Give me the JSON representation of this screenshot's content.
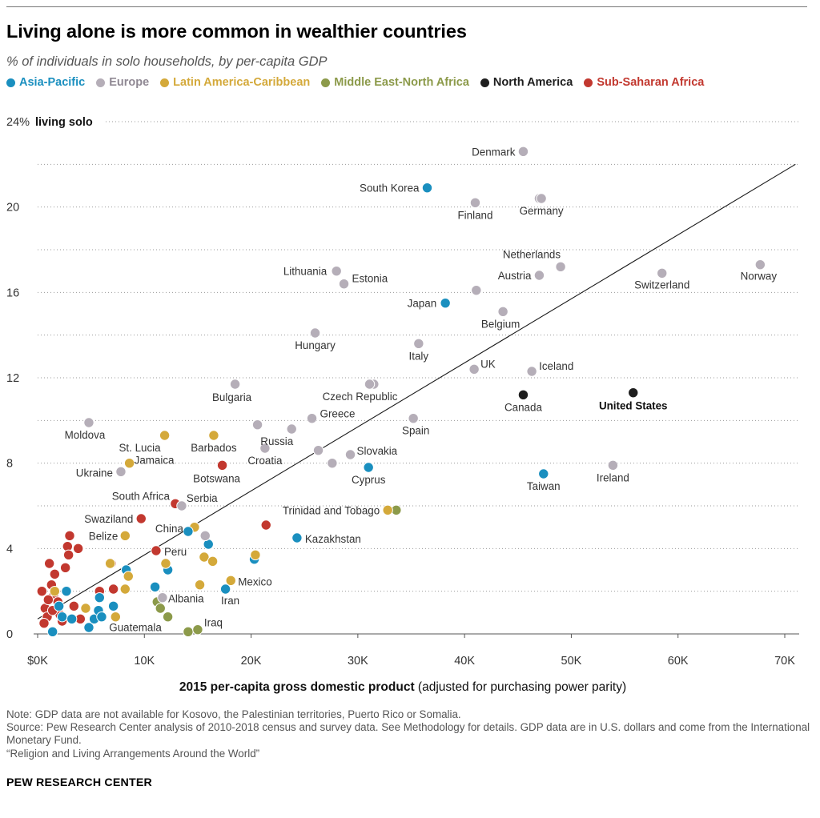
{
  "header": {
    "title": "Living alone is more common in wealthier countries",
    "subtitle": "% of individuals in solo households, by per-capita GDP"
  },
  "legend": [
    {
      "label": "Asia-Pacific",
      "color": "#1a8fbf"
    },
    {
      "label": "Europe",
      "color": "#b5aeb8"
    },
    {
      "label": "Latin America-Caribbean",
      "color": "#d4a93a"
    },
    {
      "label": "Middle East-North Africa",
      "color": "#8c9a4a"
    },
    {
      "label": "North America",
      "color": "#1e1e1e"
    },
    {
      "label": "Sub-Saharan Africa",
      "color": "#c2382f"
    }
  ],
  "chart_data": {
    "type": "scatter",
    "title": "Living alone is more common in wealthier countries",
    "xlabel_bold": "2015 per-capita gross domestic product",
    "xlabel_rest": " (adjusted for purchasing power parity)",
    "ylabel": "living solo",
    "xlim": [
      0,
      72000
    ],
    "ylim": [
      0,
      24
    ],
    "x_ticks": [
      {
        "value": 0,
        "label": "$0K"
      },
      {
        "value": 10000,
        "label": "10K"
      },
      {
        "value": 20000,
        "label": "20K"
      },
      {
        "value": 30000,
        "label": "30K"
      },
      {
        "value": 40000,
        "label": "40K"
      },
      {
        "value": 50000,
        "label": "50K"
      },
      {
        "value": 60000,
        "label": "60K"
      },
      {
        "value": 70000,
        "label": "70K"
      }
    ],
    "y_ticks": [
      {
        "value": 0,
        "label": "0"
      },
      {
        "value": 4,
        "label": "4"
      },
      {
        "value": 8,
        "label": "8"
      },
      {
        "value": 12,
        "label": "12"
      },
      {
        "value": 16,
        "label": "16"
      },
      {
        "value": 20,
        "label": "20"
      },
      {
        "value": 24,
        "label": "24%"
      }
    ],
    "gridlines_y": [
      2,
      6,
      10,
      14,
      18,
      22
    ],
    "trend_line": [
      [
        0,
        0.7
      ],
      [
        71000,
        22.0
      ]
    ],
    "colors": {
      "Asia-Pacific": "#1a8fbf",
      "Europe": "#b5aeb8",
      "Latin America-Caribbean": "#d4a93a",
      "Middle East-North Africa": "#8c9a4a",
      "North America": "#1e1e1e",
      "Sub-Saharan Africa": "#c2382f"
    },
    "labeled_points": [
      {
        "name": "Denmark",
        "region": "Europe",
        "x": 45500,
        "y": 22.6,
        "anchor": "end",
        "dx": -10,
        "dy": 5
      },
      {
        "name": "South Korea",
        "region": "Asia-Pacific",
        "x": 36500,
        "y": 20.9,
        "anchor": "end",
        "dx": -10,
        "dy": 5
      },
      {
        "name": "Finland",
        "region": "Europe",
        "x": 41000,
        "y": 20.2,
        "anchor": "middle",
        "dx": 0,
        "dy": 20
      },
      {
        "name": "Germany",
        "region": "Europe",
        "x": 47200,
        "y": 20.4,
        "anchor": "middle",
        "dx": 0,
        "dy": 20
      },
      {
        "name": "Lithuania",
        "region": "Europe",
        "x": 28000,
        "y": 17.0,
        "anchor": "end",
        "dx": -12,
        "dy": 5
      },
      {
        "name": "Estonia",
        "region": "Europe",
        "x": 28700,
        "y": 16.4,
        "anchor": "start",
        "dx": 10,
        "dy": -2
      },
      {
        "name": "Netherlands",
        "region": "Europe",
        "x": 49000,
        "y": 17.2,
        "anchor": "end",
        "dx": 0,
        "dy": -11
      },
      {
        "name": "Austria",
        "region": "Europe",
        "x": 47000,
        "y": 16.8,
        "anchor": "end",
        "dx": -10,
        "dy": 5
      },
      {
        "name": "Switzerland",
        "region": "Europe",
        "x": 58500,
        "y": 16.9,
        "anchor": "middle",
        "dx": 0,
        "dy": 19
      },
      {
        "name": "Norway",
        "region": "Europe",
        "x": 67700,
        "y": 17.3,
        "anchor": "middle",
        "dx": -2,
        "dy": 19
      },
      {
        "name": "Japan",
        "region": "Asia-Pacific",
        "x": 38200,
        "y": 15.5,
        "anchor": "end",
        "dx": -11,
        "dy": 5
      },
      {
        "name": "Belgium",
        "region": "Europe",
        "x": 43600,
        "y": 15.1,
        "anchor": "middle",
        "dx": -3,
        "dy": 20
      },
      {
        "name": "Hungary",
        "region": "Europe",
        "x": 26000,
        "y": 14.1,
        "anchor": "middle",
        "dx": 0,
        "dy": 20
      },
      {
        "name": "Italy",
        "region": "Europe",
        "x": 35700,
        "y": 13.6,
        "anchor": "middle",
        "dx": 0,
        "dy": 20
      },
      {
        "name": "UK",
        "region": "Europe",
        "x": 40900,
        "y": 12.4,
        "anchor": "start",
        "dx": 8,
        "dy": -2
      },
      {
        "name": "Iceland",
        "region": "Europe",
        "x": 46300,
        "y": 12.3,
        "anchor": "start",
        "dx": 9,
        "dy": -2
      },
      {
        "name": "Bulgaria",
        "region": "Europe",
        "x": 18500,
        "y": 11.7,
        "anchor": "middle",
        "dx": -4,
        "dy": 21
      },
      {
        "name": "Czech Republic",
        "region": "Europe",
        "x": 31100,
        "y": 11.7,
        "anchor": "middle",
        "dx": -12,
        "dy": 20
      },
      {
        "name": "Canada",
        "region": "North America",
        "x": 45500,
        "y": 11.2,
        "anchor": "middle",
        "dx": 0,
        "dy": 20
      },
      {
        "name": "United States",
        "region": "North America",
        "x": 55800,
        "y": 11.3,
        "anchor": "middle",
        "dx": 0,
        "dy": 21,
        "bold": true
      },
      {
        "name": "Greece",
        "region": "Europe",
        "x": 25700,
        "y": 10.1,
        "anchor": "start",
        "dx": 10,
        "dy": -1
      },
      {
        "name": "Spain",
        "region": "Europe",
        "x": 35200,
        "y": 10.1,
        "anchor": "middle",
        "dx": 3,
        "dy": 20
      },
      {
        "name": "Moldova",
        "region": "Europe",
        "x": 4800,
        "y": 9.9,
        "anchor": "middle",
        "dx": -5,
        "dy": 20
      },
      {
        "name": "Russia",
        "region": "Europe",
        "x": 23800,
        "y": 9.6,
        "anchor": "end",
        "dx": 2,
        "dy": 20
      },
      {
        "name": "St. Lucia",
        "region": "Latin America-Caribbean",
        "x": 11900,
        "y": 9.3,
        "anchor": "end",
        "dx": -5,
        "dy": 20
      },
      {
        "name": "Barbados",
        "region": "Latin America-Caribbean",
        "x": 16500,
        "y": 9.3,
        "anchor": "middle",
        "dx": 0,
        "dy": 20
      },
      {
        "name": "Slovakia",
        "region": "Europe",
        "x": 29300,
        "y": 8.4,
        "anchor": "start",
        "dx": 8,
        "dy": 0
      },
      {
        "name": "Croatia",
        "region": "Europe",
        "x": 21300,
        "y": 8.7,
        "anchor": "middle",
        "dx": 0,
        "dy": 20
      },
      {
        "name": "Jamaica",
        "region": "Latin America-Caribbean",
        "x": 8600,
        "y": 8.0,
        "anchor": "start",
        "dx": 6,
        "dy": 1
      },
      {
        "name": "Ukraine",
        "region": "Europe",
        "x": 7800,
        "y": 7.6,
        "anchor": "end",
        "dx": -10,
        "dy": 6
      },
      {
        "name": "Botswana",
        "region": "Sub-Saharan Africa",
        "x": 17300,
        "y": 7.9,
        "anchor": "middle",
        "dx": -7,
        "dy": 21
      },
      {
        "name": "Cyprus",
        "region": "Asia-Pacific",
        "x": 31000,
        "y": 7.8,
        "anchor": "middle",
        "dx": 0,
        "dy": 20
      },
      {
        "name": "Taiwan",
        "region": "Asia-Pacific",
        "x": 47400,
        "y": 7.5,
        "anchor": "middle",
        "dx": 0,
        "dy": 20
      },
      {
        "name": "Ireland",
        "region": "Europe",
        "x": 53900,
        "y": 7.9,
        "anchor": "middle",
        "dx": 0,
        "dy": 20
      },
      {
        "name": "South Africa",
        "region": "Sub-Saharan Africa",
        "x": 12900,
        "y": 6.1,
        "anchor": "end",
        "dx": -7,
        "dy": -5
      },
      {
        "name": "Serbia",
        "region": "Europe",
        "x": 13500,
        "y": 6.0,
        "anchor": "start",
        "dx": 6,
        "dy": -5
      },
      {
        "name": "Trinidad and Tobago",
        "region": "Latin America-Caribbean",
        "x": 32800,
        "y": 5.8,
        "anchor": "end",
        "dx": -10,
        "dy": 5
      },
      {
        "name": "Swaziland",
        "region": "Sub-Saharan Africa",
        "x": 9700,
        "y": 5.4,
        "anchor": "end",
        "dx": -10,
        "dy": 5
      },
      {
        "name": "China",
        "region": "Asia-Pacific",
        "x": 14100,
        "y": 4.8,
        "anchor": "end",
        "dx": -6,
        "dy": 1
      },
      {
        "name": "Belize",
        "region": "Latin America-Caribbean",
        "x": 8200,
        "y": 4.6,
        "anchor": "end",
        "dx": -9,
        "dy": 5
      },
      {
        "name": "Kazakhstan",
        "region": "Asia-Pacific",
        "x": 24300,
        "y": 4.5,
        "anchor": "start",
        "dx": 10,
        "dy": 6
      },
      {
        "name": "Peru",
        "region": "Sub-Saharan Africa",
        "x": 11100,
        "y": 3.9,
        "anchor": "start",
        "dx": 10,
        "dy": 6
      },
      {
        "name": "Mexico",
        "region": "Latin America-Caribbean",
        "x": 18100,
        "y": 2.5,
        "anchor": "start",
        "dx": 9,
        "dy": 6
      },
      {
        "name": "Albania",
        "region": "Europe",
        "x": 11700,
        "y": 1.7,
        "anchor": "start",
        "dx": 7,
        "dy": 6
      },
      {
        "name": "Iran",
        "region": "Asia-Pacific",
        "x": 17600,
        "y": 2.1,
        "anchor": "middle",
        "dx": 6,
        "dy": 19
      },
      {
        "name": "Guatemala",
        "region": "Latin America-Caribbean",
        "x": 7300,
        "y": 0.8,
        "anchor": "start",
        "dx": -8,
        "dy": 18
      },
      {
        "name": "Iraq",
        "region": "Middle East-North Africa",
        "x": 15000,
        "y": 0.2,
        "anchor": "start",
        "dx": 8,
        "dy": -4
      }
    ],
    "unlabeled_points": [
      {
        "region": "Sub-Saharan Africa",
        "x": 400,
        "y": 2.0
      },
      {
        "region": "Sub-Saharan Africa",
        "x": 700,
        "y": 1.2
      },
      {
        "region": "Sub-Saharan Africa",
        "x": 900,
        "y": 0.8
      },
      {
        "region": "Sub-Saharan Africa",
        "x": 1100,
        "y": 3.3
      },
      {
        "region": "Sub-Saharan Africa",
        "x": 1300,
        "y": 2.3
      },
      {
        "region": "Sub-Saharan Africa",
        "x": 1500,
        "y": 1.8
      },
      {
        "region": "Sub-Saharan Africa",
        "x": 1600,
        "y": 2.8
      },
      {
        "region": "Sub-Saharan Africa",
        "x": 1900,
        "y": 1.5
      },
      {
        "region": "Sub-Saharan Africa",
        "x": 2100,
        "y": 0.9
      },
      {
        "region": "Sub-Saharan Africa",
        "x": 2300,
        "y": 0.6
      },
      {
        "region": "Sub-Saharan Africa",
        "x": 2600,
        "y": 3.1
      },
      {
        "region": "Sub-Saharan Africa",
        "x": 2800,
        "y": 4.1
      },
      {
        "region": "Sub-Saharan Africa",
        "x": 2900,
        "y": 3.7
      },
      {
        "region": "Sub-Saharan Africa",
        "x": 3000,
        "y": 4.6
      },
      {
        "region": "Sub-Saharan Africa",
        "x": 3400,
        "y": 1.3
      },
      {
        "region": "Sub-Saharan Africa",
        "x": 3800,
        "y": 4.0
      },
      {
        "region": "Sub-Saharan Africa",
        "x": 4000,
        "y": 0.7
      },
      {
        "region": "Sub-Saharan Africa",
        "x": 1000,
        "y": 1.6
      },
      {
        "region": "Sub-Saharan Africa",
        "x": 600,
        "y": 0.5
      },
      {
        "region": "Sub-Saharan Africa",
        "x": 5800,
        "y": 2.0
      },
      {
        "region": "Sub-Saharan Africa",
        "x": 6900,
        "y": 3.3
      },
      {
        "region": "Sub-Saharan Africa",
        "x": 7100,
        "y": 2.1
      },
      {
        "region": "Sub-Saharan Africa",
        "x": 21400,
        "y": 5.1
      },
      {
        "region": "Sub-Saharan Africa",
        "x": 1400,
        "y": 1.1
      },
      {
        "region": "Asia-Pacific",
        "x": 1400,
        "y": 0.1
      },
      {
        "region": "Asia-Pacific",
        "x": 2000,
        "y": 1.3
      },
      {
        "region": "Asia-Pacific",
        "x": 2300,
        "y": 0.8
      },
      {
        "region": "Asia-Pacific",
        "x": 2700,
        "y": 2.0
      },
      {
        "region": "Asia-Pacific",
        "x": 3200,
        "y": 0.7
      },
      {
        "region": "Asia-Pacific",
        "x": 4800,
        "y": 0.3
      },
      {
        "region": "Asia-Pacific",
        "x": 5300,
        "y": 0.7
      },
      {
        "region": "Asia-Pacific",
        "x": 5700,
        "y": 1.1
      },
      {
        "region": "Asia-Pacific",
        "x": 5800,
        "y": 1.7
      },
      {
        "region": "Asia-Pacific",
        "x": 6000,
        "y": 0.8
      },
      {
        "region": "Asia-Pacific",
        "x": 7100,
        "y": 1.3
      },
      {
        "region": "Asia-Pacific",
        "x": 8300,
        "y": 3.0
      },
      {
        "region": "Asia-Pacific",
        "x": 11000,
        "y": 2.2
      },
      {
        "region": "Asia-Pacific",
        "x": 12200,
        "y": 3.0
      },
      {
        "region": "Asia-Pacific",
        "x": 16000,
        "y": 4.2
      },
      {
        "region": "Asia-Pacific",
        "x": 20300,
        "y": 3.5
      },
      {
        "region": "Latin America-Caribbean",
        "x": 1600,
        "y": 2.0
      },
      {
        "region": "Latin America-Caribbean",
        "x": 4500,
        "y": 1.2
      },
      {
        "region": "Latin America-Caribbean",
        "x": 6800,
        "y": 3.3
      },
      {
        "region": "Latin America-Caribbean",
        "x": 8200,
        "y": 2.1
      },
      {
        "region": "Latin America-Caribbean",
        "x": 8500,
        "y": 2.7
      },
      {
        "region": "Latin America-Caribbean",
        "x": 12000,
        "y": 3.3
      },
      {
        "region": "Latin America-Caribbean",
        "x": 14700,
        "y": 5.0
      },
      {
        "region": "Latin America-Caribbean",
        "x": 15200,
        "y": 2.3
      },
      {
        "region": "Latin America-Caribbean",
        "x": 15600,
        "y": 3.6
      },
      {
        "region": "Latin America-Caribbean",
        "x": 16400,
        "y": 3.4
      },
      {
        "region": "Latin America-Caribbean",
        "x": 20400,
        "y": 3.7
      },
      {
        "region": "Middle East-North Africa",
        "x": 11200,
        "y": 1.5
      },
      {
        "region": "Middle East-North Africa",
        "x": 11500,
        "y": 1.2
      },
      {
        "region": "Middle East-North Africa",
        "x": 12200,
        "y": 0.8
      },
      {
        "region": "Middle East-North Africa",
        "x": 14100,
        "y": 0.1
      },
      {
        "region": "Middle East-North Africa",
        "x": 33600,
        "y": 5.8
      },
      {
        "region": "Europe",
        "x": 15700,
        "y": 4.6
      },
      {
        "region": "Europe",
        "x": 20600,
        "y": 9.8
      },
      {
        "region": "Europe",
        "x": 26300,
        "y": 8.6
      },
      {
        "region": "Europe",
        "x": 27600,
        "y": 8.0
      },
      {
        "region": "Europe",
        "x": 31500,
        "y": 11.7
      },
      {
        "region": "Europe",
        "x": 41100,
        "y": 16.1
      },
      {
        "region": "Europe",
        "x": 47000,
        "y": 20.4
      }
    ]
  },
  "notes": {
    "note": "Note: GDP data are not available for Kosovo, the Palestinian territories, Puerto Rico or Somalia.",
    "source": "Source: Pew Research Center analysis of 2010-2018 census and survey data. See Methodology for details. GDP data are in U.S. dollars and come from the International Monetary Fund.",
    "report": "“Religion and Living Arrangements Around the World”"
  },
  "org": "PEW RESEARCH CENTER"
}
